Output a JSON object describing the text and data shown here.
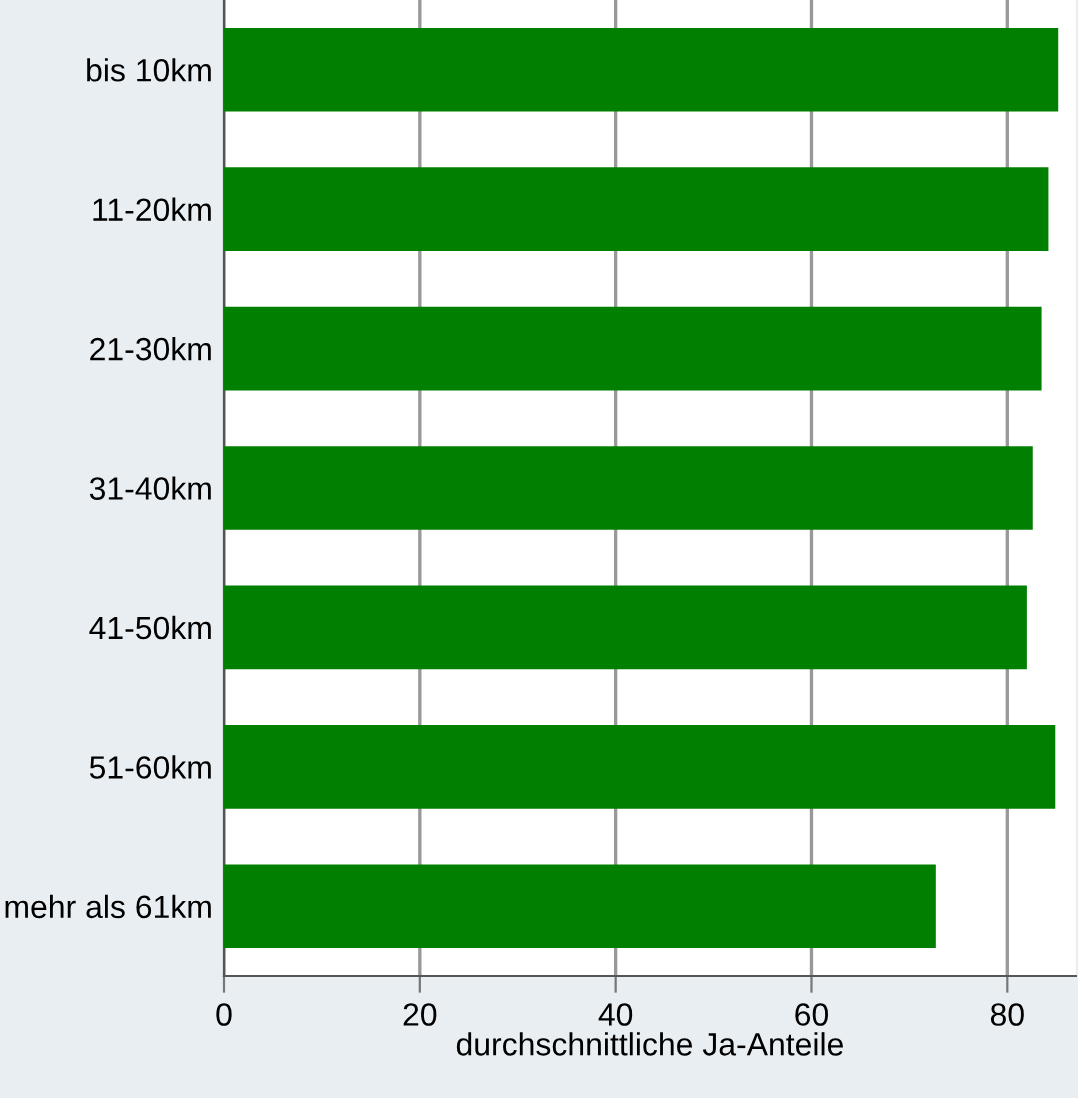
{
  "chart_data": {
    "type": "bar",
    "orientation": "horizontal",
    "xlabel": "durchschnittliche Ja-Anteile",
    "categories": [
      "bis 10km",
      "11-20km",
      "21-30km",
      "31-40km",
      "41-50km",
      "51-60km",
      "mehr als 61km"
    ],
    "values": [
      85.2,
      84.2,
      83.5,
      82.6,
      82.0,
      84.9,
      72.7
    ],
    "color": "#007f00",
    "xlim": [
      0,
      87
    ],
    "xticks": [
      0,
      20,
      40,
      60,
      80
    ],
    "grid": "x"
  }
}
